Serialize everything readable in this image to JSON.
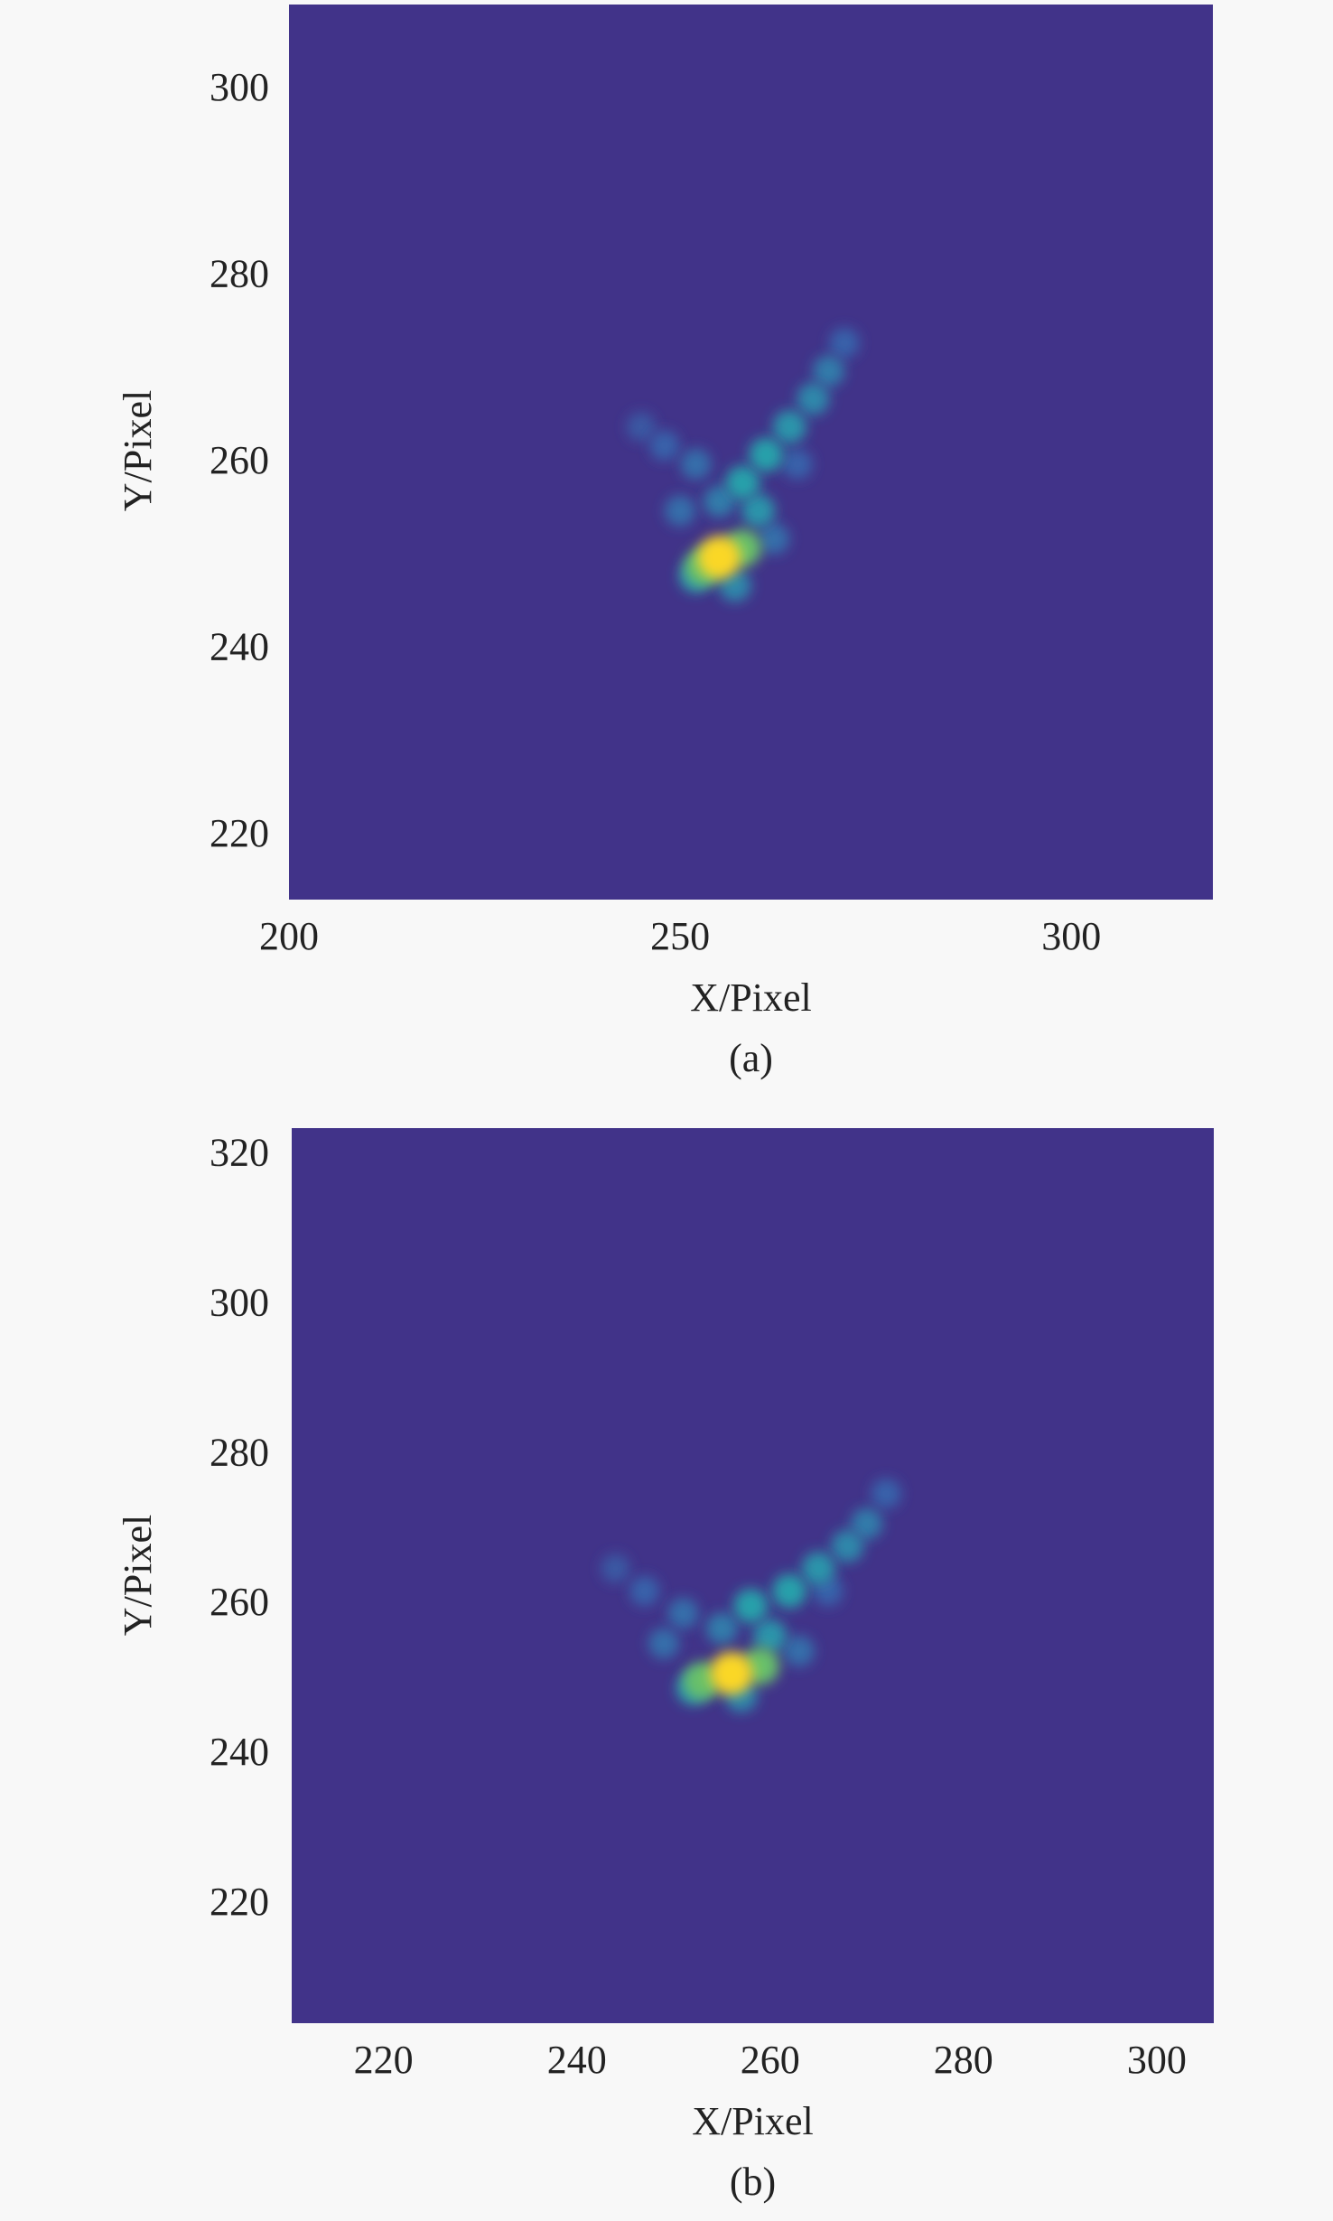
{
  "chart_data": [
    {
      "type": "heatmap",
      "caption": "(a)",
      "xlabel": "X/Pixel",
      "ylabel": "Y/Pixel",
      "xlim": [
        200,
        318.1
      ],
      "ylim": [
        213.3,
        309.3
      ],
      "xticks": [
        200,
        250,
        300
      ],
      "yticks": [
        220,
        240,
        260,
        280,
        300
      ],
      "background": "#413389",
      "x": [
        245,
        248,
        265,
        271,
        252,
        250,
        262,
        269,
        257,
        252,
        267,
        255,
        264,
        260,
        258,
        261,
        253,
        258,
        255
      ],
      "y": [
        264,
        262,
        260,
        273,
        260,
        255,
        252,
        270,
        247,
        248,
        267,
        256,
        264,
        255,
        258,
        261,
        249,
        251,
        250
      ],
      "values": [
        0.2,
        0.25,
        0.25,
        0.25,
        0.3,
        0.3,
        0.3,
        0.35,
        0.4,
        0.45,
        0.4,
        0.35,
        0.45,
        0.45,
        0.5,
        0.5,
        0.7,
        0.7,
        1.0
      ]
    },
    {
      "type": "heatmap",
      "caption": "(b)",
      "xlabel": "X/Pixel",
      "ylabel": "Y/Pixel",
      "xlim": [
        210.5,
        305.9
      ],
      "ylim": [
        204.3,
        323.8
      ],
      "xticks": [
        220,
        240,
        260,
        280,
        300
      ],
      "yticks": [
        220,
        240,
        260,
        280,
        300,
        320
      ],
      "background": "#413389",
      "x": [
        244,
        247,
        266,
        272,
        251,
        249,
        263,
        270,
        257,
        252,
        268,
        255,
        265,
        260,
        258,
        262,
        253,
        259,
        256
      ],
      "y": [
        265,
        262,
        262,
        275,
        259,
        255,
        254,
        271,
        248,
        249,
        268,
        257,
        265,
        256,
        260,
        262,
        250,
        252,
        251
      ],
      "values": [
        0.2,
        0.25,
        0.25,
        0.25,
        0.3,
        0.3,
        0.3,
        0.35,
        0.4,
        0.45,
        0.4,
        0.35,
        0.45,
        0.45,
        0.5,
        0.5,
        0.7,
        0.7,
        1.0
      ]
    }
  ]
}
